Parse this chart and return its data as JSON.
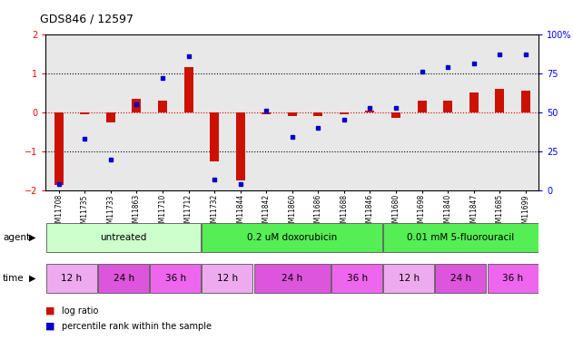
{
  "title": "GDS846 / 12597",
  "samples": [
    "GSM11708",
    "GSM11735",
    "GSM11733",
    "GSM11863",
    "GSM11710",
    "GSM11712",
    "GSM11732",
    "GSM11844",
    "GSM11842",
    "GSM11860",
    "GSM11686",
    "GSM11688",
    "GSM11846",
    "GSM11680",
    "GSM11698",
    "GSM11840",
    "GSM11847",
    "GSM11685",
    "GSM11699"
  ],
  "log_ratio": [
    -1.85,
    -0.05,
    -0.25,
    0.35,
    0.3,
    1.15,
    -1.25,
    -1.75,
    -0.05,
    -0.1,
    -0.1,
    -0.05,
    0.05,
    -0.15,
    0.3,
    0.3,
    0.5,
    0.6,
    0.55
  ],
  "percentile": [
    4,
    33,
    20,
    55,
    72,
    86,
    7,
    4,
    51,
    34,
    40,
    45,
    53,
    53,
    76,
    79,
    81,
    87,
    87
  ],
  "agents": [
    {
      "label": "untreated",
      "start": 0,
      "end": 6,
      "color": "#ccffcc"
    },
    {
      "label": "0.2 uM doxorubicin",
      "start": 6,
      "end": 13,
      "color": "#55ee55"
    },
    {
      "label": "0.01 mM 5-fluorouracil",
      "start": 13,
      "end": 19,
      "color": "#55ee55"
    }
  ],
  "time_groups": [
    {
      "label": "12 h",
      "start": 0,
      "end": 2
    },
    {
      "label": "24 h",
      "start": 2,
      "end": 4
    },
    {
      "label": "36 h",
      "start": 4,
      "end": 6
    },
    {
      "label": "12 h",
      "start": 6,
      "end": 8
    },
    {
      "label": "24 h",
      "start": 8,
      "end": 11
    },
    {
      "label": "36 h",
      "start": 11,
      "end": 13
    },
    {
      "label": "12 h",
      "start": 13,
      "end": 15
    },
    {
      "label": "24 h",
      "start": 15,
      "end": 17
    },
    {
      "label": "36 h",
      "start": 17,
      "end": 19
    }
  ],
  "time_colors": {
    "12 h": "#eeaaee",
    "24 h": "#dd55dd",
    "36 h": "#ee66ee"
  },
  "ylim_left": [
    -2,
    2
  ],
  "ylim_right": [
    0,
    100
  ],
  "bar_color": "#cc1100",
  "dot_color": "#0000cc",
  "bg_color": "#ffffff",
  "sample_bg": "#cccccc",
  "plot_bg": "#ffffff"
}
